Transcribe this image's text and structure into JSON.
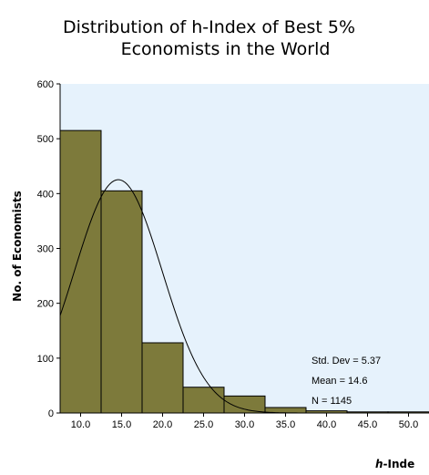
{
  "chart_data": {
    "type": "bar",
    "title_line1": "Distribution of h-Index of Best 5%",
    "title_line2": "Economists in the World",
    "title": "Distribution of h-Index of Best 5% Economists in the World",
    "ylabel": "No. of Economists",
    "xlabel_italic": "h",
    "xlabel_rest": "-Inde",
    "xlabel": "h-Inde",
    "ylim": [
      0,
      600
    ],
    "xlim": [
      7.5,
      52.5
    ],
    "yticks": [
      "0",
      "100",
      "200",
      "300",
      "400",
      "500",
      "600"
    ],
    "xticks": [
      "10.0",
      "15.0",
      "20.0",
      "25.0",
      "30.0",
      "35.0",
      "40.0",
      "45.0",
      "50.0"
    ],
    "bins": [
      {
        "center": 10,
        "value": 515
      },
      {
        "center": 15,
        "value": 405
      },
      {
        "center": 20,
        "value": 128
      },
      {
        "center": 25,
        "value": 47
      },
      {
        "center": 30,
        "value": 31
      },
      {
        "center": 35,
        "value": 10
      },
      {
        "center": 40,
        "value": 4
      },
      {
        "center": 45,
        "value": 2
      },
      {
        "center": 50,
        "value": 2
      }
    ],
    "normal_curve": {
      "mean": 14.6,
      "std": 5.37,
      "n": 1145,
      "bin_width": 5
    },
    "stats": [
      "Std. Dev = 5.37",
      "Mean = 14.6",
      "N = 1145"
    ],
    "bar_color": "#7d7a3b",
    "plot_background": "#e6f2fc",
    "grid": false
  }
}
